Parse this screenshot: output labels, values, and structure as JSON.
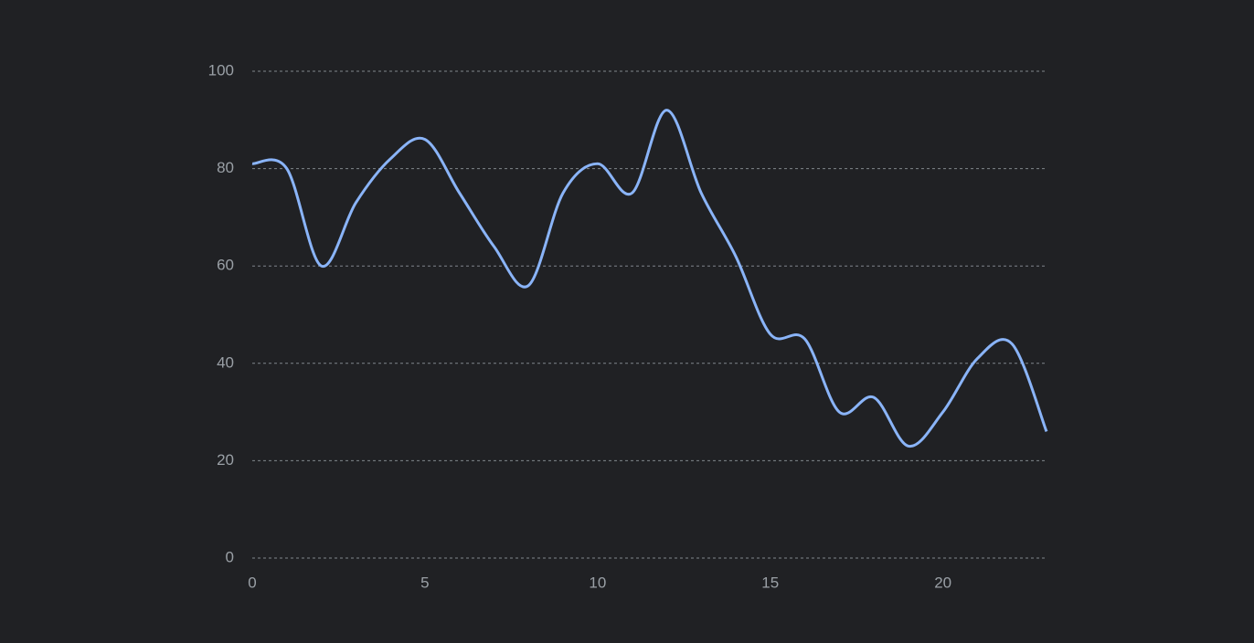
{
  "chart_data": {
    "type": "line",
    "x": [
      0,
      1,
      2,
      3,
      4,
      5,
      6,
      7,
      8,
      9,
      10,
      11,
      12,
      13,
      14,
      15,
      16,
      17,
      18,
      19,
      20,
      21,
      22,
      23
    ],
    "series": [
      {
        "color": "#8ab4f8",
        "values": [
          81,
          80,
          60,
          73,
          82,
          86,
          75,
          64,
          56,
          75,
          81,
          75,
          92,
          75,
          62,
          46,
          45,
          30,
          33,
          23,
          30,
          41,
          44,
          26
        ]
      }
    ],
    "xlim": [
      0,
      23
    ],
    "xticks": [
      0,
      5,
      10,
      15,
      20
    ],
    "ylim": [
      0,
      100
    ],
    "yticks": [
      0,
      20,
      40,
      60,
      80,
      100
    ],
    "grid": true
  }
}
